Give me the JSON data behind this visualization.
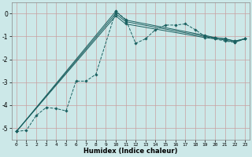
{
  "xlabel": "Humidex (Indice chaleur)",
  "bg_color": "#cce8e8",
  "grid_color": "#c8a0a0",
  "line_color": "#1a6060",
  "xlim": [
    -0.5,
    23.5
  ],
  "ylim": [
    -5.5,
    0.5
  ],
  "xticks": [
    0,
    1,
    2,
    3,
    4,
    5,
    6,
    7,
    8,
    9,
    10,
    11,
    12,
    13,
    14,
    15,
    16,
    17,
    18,
    19,
    20,
    21,
    22,
    23
  ],
  "yticks": [
    0,
    -1,
    -2,
    -3,
    -4,
    -5
  ],
  "series": [
    {
      "x": [
        0,
        1,
        2,
        3,
        4,
        5,
        6,
        7,
        8,
        10,
        11,
        12,
        13,
        14,
        15,
        16,
        17,
        18,
        19,
        20,
        21,
        22,
        23
      ],
      "y": [
        -5.15,
        -5.1,
        -4.45,
        -4.1,
        -4.15,
        -4.25,
        -2.95,
        -2.95,
        -2.65,
        0.1,
        -0.25,
        -1.3,
        -1.1,
        -0.7,
        -0.5,
        -0.5,
        -0.45,
        -0.7,
        -1.0,
        -1.1,
        -1.2,
        -1.25,
        -1.1
      ],
      "marker": "D",
      "markersize": 1.8,
      "linewidth": 0.7,
      "linestyle": "--"
    },
    {
      "x": [
        0,
        10,
        11,
        19,
        20,
        21,
        22,
        23
      ],
      "y": [
        -5.15,
        0.1,
        -0.28,
        -0.95,
        -1.05,
        -1.1,
        -1.2,
        -1.1
      ],
      "marker": "D",
      "markersize": 1.8,
      "linewidth": 0.7,
      "linestyle": "-"
    },
    {
      "x": [
        0,
        10,
        11,
        19,
        20,
        21,
        22,
        23
      ],
      "y": [
        -5.15,
        0.0,
        -0.35,
        -1.0,
        -1.05,
        -1.1,
        -1.2,
        -1.1
      ],
      "marker": "D",
      "markersize": 1.8,
      "linewidth": 0.7,
      "linestyle": "-"
    },
    {
      "x": [
        0,
        10,
        11,
        19,
        20,
        21,
        22,
        23
      ],
      "y": [
        -5.15,
        -0.1,
        -0.45,
        -1.05,
        -1.1,
        -1.15,
        -1.25,
        -1.1
      ],
      "marker": "D",
      "markersize": 1.8,
      "linewidth": 0.7,
      "linestyle": "-"
    }
  ]
}
